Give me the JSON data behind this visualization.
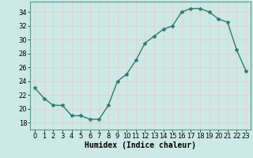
{
  "x": [
    0,
    1,
    2,
    3,
    4,
    5,
    6,
    7,
    8,
    9,
    10,
    11,
    12,
    13,
    14,
    15,
    16,
    17,
    18,
    19,
    20,
    21,
    22,
    23
  ],
  "y": [
    23,
    21.5,
    20.5,
    20.5,
    19,
    19,
    18.5,
    18.5,
    20.5,
    24,
    25,
    27,
    29.5,
    30.5,
    31.5,
    32,
    34,
    34.5,
    34.5,
    34,
    33,
    32.5,
    28.5,
    25.5
  ],
  "line_color": "#2e7d6e",
  "marker": "*",
  "marker_size": 3,
  "bg_color": "#cce9e5",
  "grid_color": "#e8c8c8",
  "xlabel": "Humidex (Indice chaleur)",
  "xlim": [
    -0.5,
    23.5
  ],
  "ylim": [
    17,
    35.5
  ],
  "yticks": [
    18,
    20,
    22,
    24,
    26,
    28,
    30,
    32,
    34
  ],
  "xticks": [
    0,
    1,
    2,
    3,
    4,
    5,
    6,
    7,
    8,
    9,
    10,
    11,
    12,
    13,
    14,
    15,
    16,
    17,
    18,
    19,
    20,
    21,
    22,
    23
  ],
  "tick_fontsize": 6,
  "xlabel_fontsize": 7,
  "spine_color": "#5a9a8a"
}
